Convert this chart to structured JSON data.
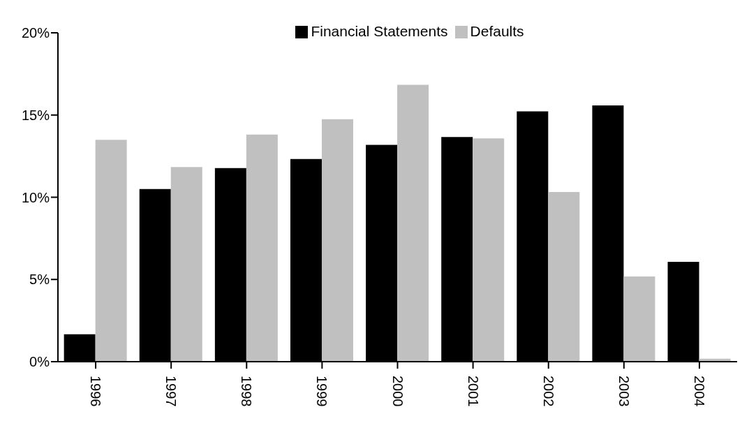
{
  "chart_data": {
    "type": "bar",
    "categories": [
      "1996",
      "1997",
      "1998",
      "1999",
      "2000",
      "2001",
      "2002",
      "2003",
      "2004"
    ],
    "series": [
      {
        "name": "Financial Statements",
        "color": "#000000",
        "values": [
          1.67,
          10.5,
          11.77,
          12.32,
          13.18,
          13.66,
          15.22,
          15.58,
          6.07
        ]
      },
      {
        "name": "Defaults",
        "color": "#c0c0c0",
        "values": [
          13.49,
          11.84,
          13.81,
          14.75,
          16.84,
          13.58,
          10.32,
          5.18,
          0.18
        ]
      }
    ],
    "ylim": [
      0,
      20
    ],
    "yticks": [
      {
        "value": 0,
        "label": "0%"
      },
      {
        "value": 5,
        "label": "5%"
      },
      {
        "value": 10,
        "label": "10%"
      },
      {
        "value": 15,
        "label": "15%"
      },
      {
        "value": 20,
        "label": "20%"
      }
    ],
    "grid": false,
    "legend": "top"
  }
}
